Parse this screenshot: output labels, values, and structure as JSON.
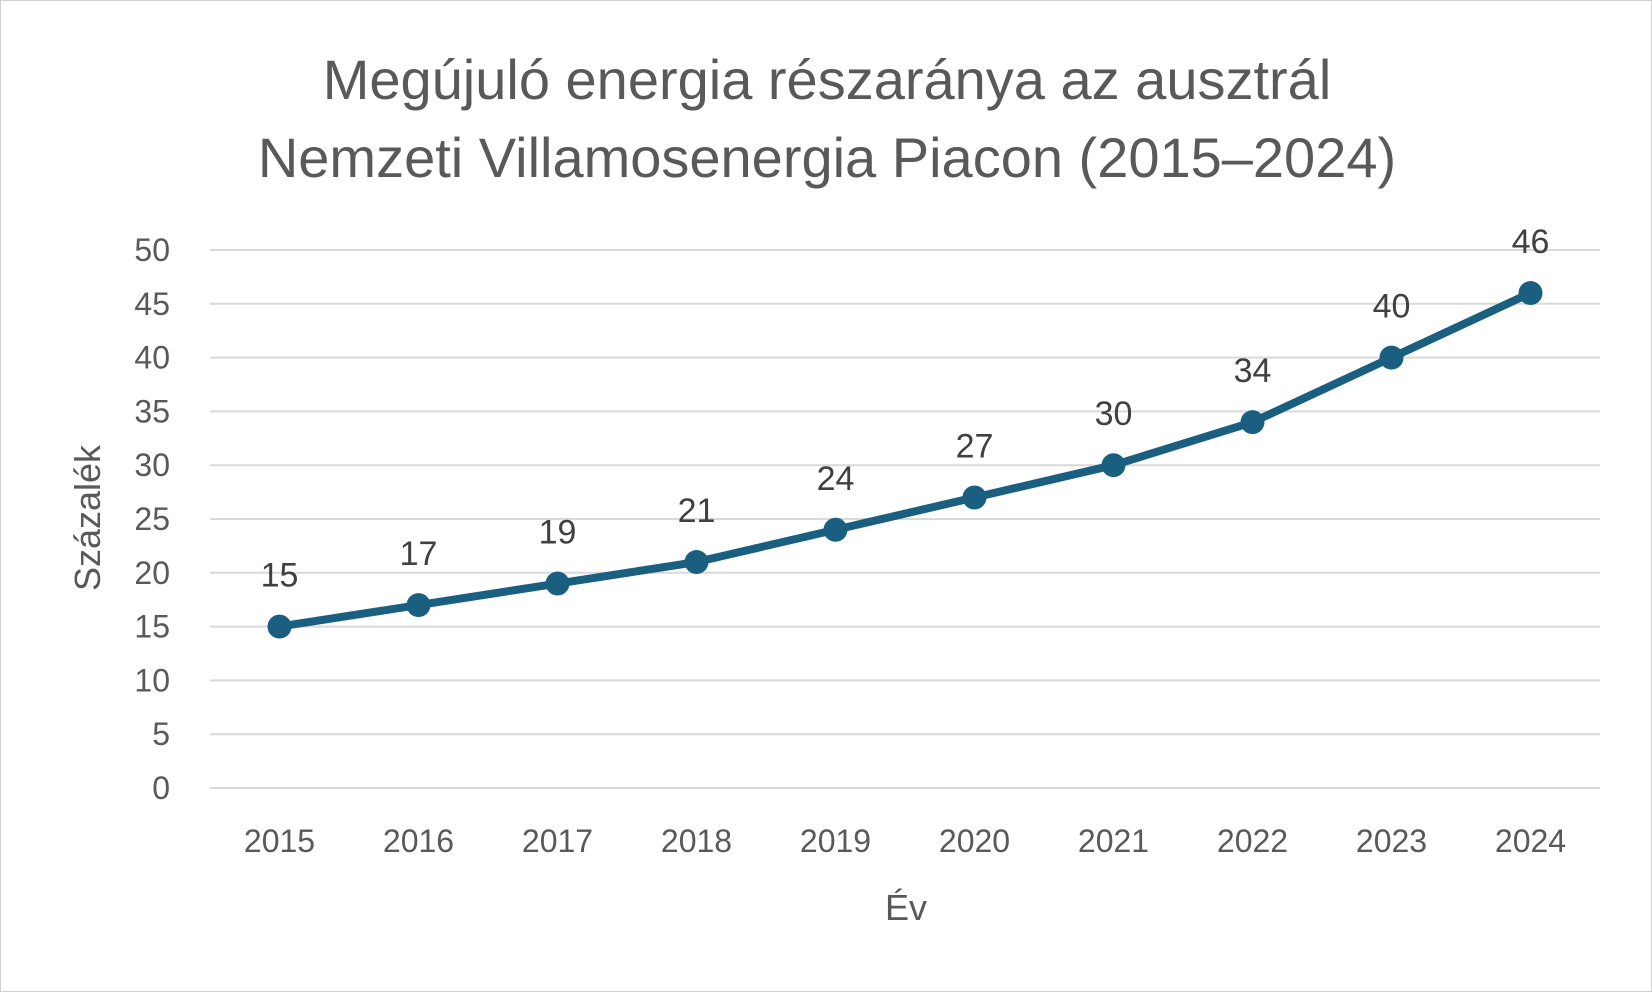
{
  "chart_data": {
    "type": "line",
    "title_lines": [
      "Megújuló energia részaránya az ausztrál",
      "Nemzeti Villamosenergia Piacon (2015–2024)"
    ],
    "xlabel": "Év",
    "ylabel": "Százalék",
    "categories": [
      "2015",
      "2016",
      "2017",
      "2018",
      "2019",
      "2020",
      "2021",
      "2022",
      "2023",
      "2024"
    ],
    "series": [
      {
        "values": [
          15,
          17,
          19,
          21,
          24,
          27,
          30,
          34,
          40,
          46
        ],
        "color": "#1a5f80"
      }
    ],
    "ylim": [
      0,
      50
    ],
    "yticks": [
      "0",
      "5",
      "10",
      "15",
      "20",
      "25",
      "30",
      "35",
      "40",
      "45",
      "50"
    ],
    "grid": true,
    "data_labels": true,
    "legend": "none",
    "colors": {
      "gridline": "#d9d9d9",
      "text": "#595959"
    }
  }
}
